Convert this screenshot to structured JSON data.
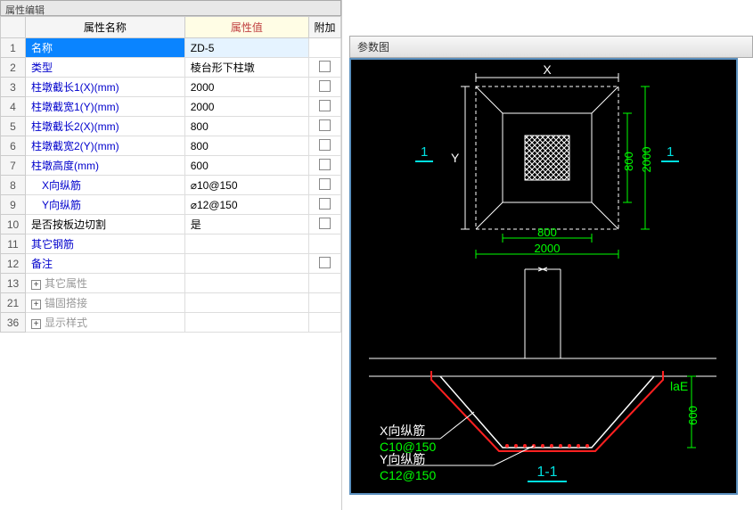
{
  "title_bar": "属性编辑",
  "table": {
    "headers": {
      "name": "属性名称",
      "value": "属性值",
      "extra": "附加"
    },
    "rows": [
      {
        "idx": "1",
        "name": "名称",
        "value": "ZD-5",
        "selected": true
      },
      {
        "idx": "2",
        "name": "类型",
        "value": "棱台形下柱墩",
        "checkbox": true
      },
      {
        "idx": "3",
        "name": "柱墩截长1(X)(mm)",
        "value": "2000",
        "checkbox": true
      },
      {
        "idx": "4",
        "name": "柱墩截宽1(Y)(mm)",
        "value": "2000",
        "checkbox": true
      },
      {
        "idx": "5",
        "name": "柱墩截长2(X)(mm)",
        "value": "800",
        "checkbox": true
      },
      {
        "idx": "6",
        "name": "柱墩截宽2(Y)(mm)",
        "value": "800",
        "checkbox": true
      },
      {
        "idx": "7",
        "name": "柱墩高度(mm)",
        "value": "600",
        "checkbox": true
      },
      {
        "idx": "8",
        "name": "X向纵筋",
        "value": "⌀10@150",
        "indent": true,
        "checkbox": true
      },
      {
        "idx": "9",
        "name": "Y向纵筋",
        "value": "⌀12@150",
        "indent": true,
        "checkbox": true
      },
      {
        "idx": "10",
        "name": "是否按板边切割",
        "value": "是",
        "black": true,
        "checkbox": true
      },
      {
        "idx": "11",
        "name": "其它钢筋",
        "value": ""
      },
      {
        "idx": "12",
        "name": "备注",
        "value": "",
        "checkbox": true
      },
      {
        "idx": "13",
        "name": "其它属性",
        "gray": true,
        "expand": true
      },
      {
        "idx": "21",
        "name": "锚固搭接",
        "gray": true,
        "expand": true
      },
      {
        "idx": "36",
        "name": "显示样式",
        "gray": true,
        "expand": true
      }
    ]
  },
  "param": {
    "title": "参数图",
    "labels": {
      "X": "X",
      "Y": "Y",
      "dim800": "800",
      "dim2000": "2000",
      "section1_left": "1",
      "section1_right": "1",
      "laE": "laE",
      "dim600": "600",
      "xrebar_label": "X向纵筋",
      "xrebar_spec": "C10@150",
      "yrebar_label": "Y向纵筋",
      "yrebar_spec": "C12@150",
      "section_label": "1-1"
    },
    "colors": {
      "white": "#ffffff",
      "green": "#00ff00",
      "cyan": "#00e0e0",
      "red": "#ff2020",
      "bg": "#000000"
    }
  }
}
